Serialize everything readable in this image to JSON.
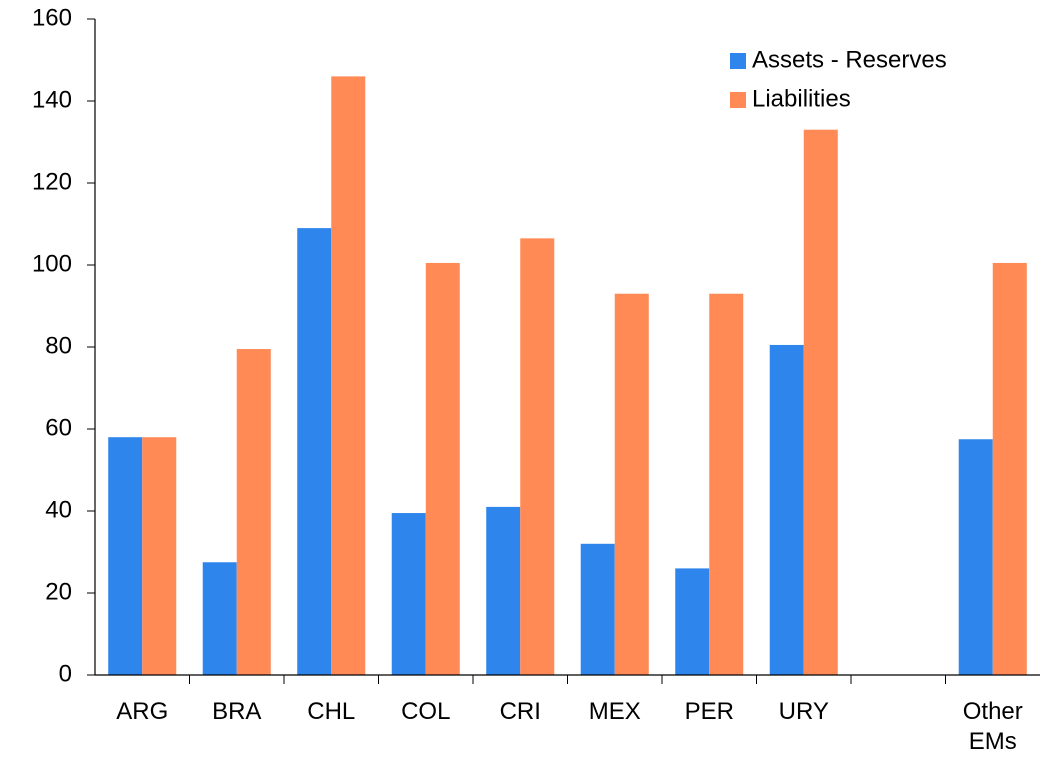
{
  "chart_data": {
    "type": "bar",
    "categories": [
      "ARG",
      "BRA",
      "CHL",
      "COL",
      "CRI",
      "MEX",
      "PER",
      "URY",
      null,
      "Other EMs"
    ],
    "series": [
      {
        "name": "Assets - Reserves",
        "color": "#2e86ec",
        "values": [
          58,
          27.5,
          109,
          39.5,
          41,
          32,
          26,
          80.5,
          null,
          57.5
        ]
      },
      {
        "name": "Liabilities",
        "color": "#ff8a56",
        "values": [
          58,
          79.5,
          146,
          100.5,
          106.5,
          93,
          93,
          133,
          null,
          100.5
        ]
      }
    ],
    "ylim": [
      0,
      160
    ],
    "yticks": [
      0,
      20,
      40,
      60,
      80,
      100,
      120,
      140,
      160
    ],
    "grid": false,
    "legend": "upper right"
  }
}
